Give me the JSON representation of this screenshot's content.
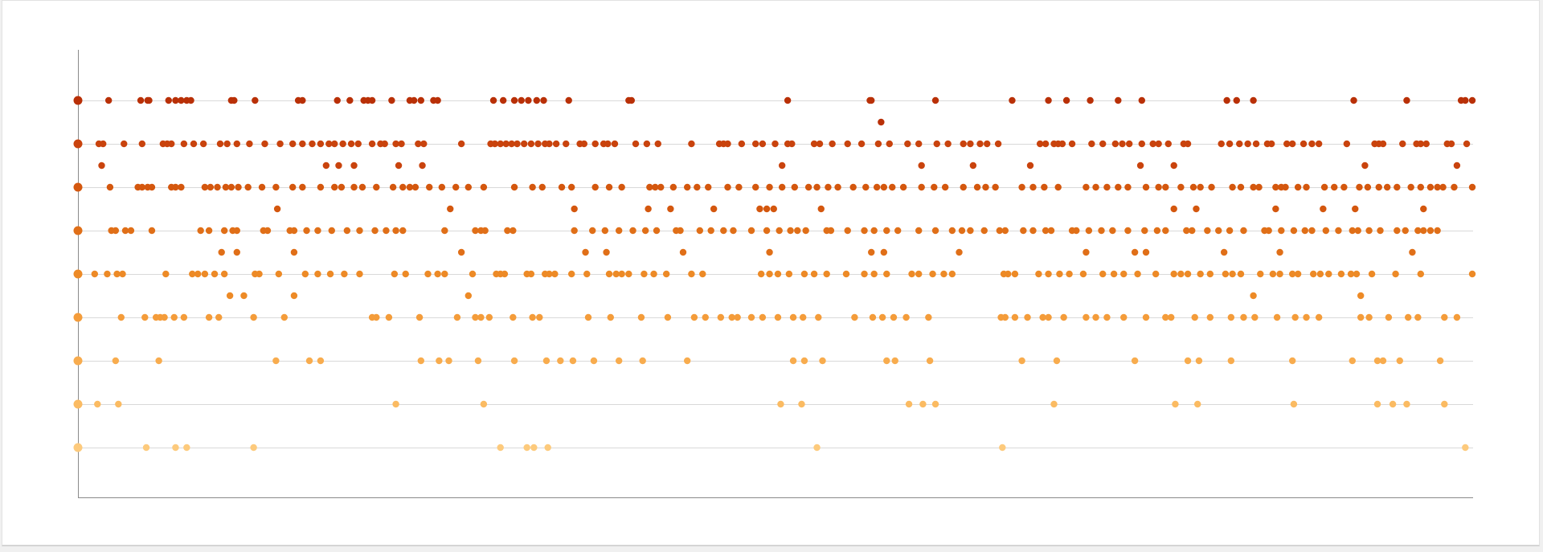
{
  "chart_data": {
    "type": "scatter",
    "title": "",
    "xlabel": "",
    "ylabel": "",
    "x_range": [
      0,
      100
    ],
    "grid": true,
    "legend": "none",
    "rows": [
      {
        "level": 1,
        "color": "#b93007",
        "x": [
          0,
          2.2,
          4.5,
          5.0,
          5.1,
          6.5,
          7.0,
          7.4,
          7.8,
          8.1,
          11.0,
          11.2,
          12.7,
          15.8,
          16.1,
          18.6,
          19.5,
          20.5,
          20.8,
          21.1,
          22.5,
          23.8,
          24.1,
          24.6,
          25.5,
          25.8,
          29.8,
          30.5,
          31.3,
          31.8,
          32.3,
          32.9,
          33.4,
          35.2,
          39.5,
          39.7,
          50.9,
          56.8,
          56.9,
          61.5,
          67.0,
          69.6,
          70.9,
          72.6,
          74.6,
          76.3,
          82.4,
          83.1,
          84.3,
          91.5,
          95.3,
          100,
          99.5,
          99.2
        ]
      },
      {
        "level": 2,
        "color": "#c9430d",
        "x": [
          0,
          1.5,
          1.8,
          3.3,
          4.6,
          6.1,
          6.4,
          6.7,
          7.6,
          8.3,
          9.0,
          10.2,
          10.7,
          11.4,
          12.3,
          13.4,
          14.5,
          15.4,
          16.1,
          16.8,
          17.4,
          18.0,
          18.4,
          19.0,
          19.6,
          20.1,
          21.1,
          21.7,
          22.0,
          22.8,
          23.2,
          24.4,
          24.8,
          27.5,
          29.6,
          29.9,
          30.3,
          30.7,
          31.1,
          31.5,
          32.0,
          32.5,
          33.0,
          33.5,
          33.8,
          34.3,
          35.0,
          36.0,
          36.3,
          37.1,
          37.7,
          38.0,
          38.5,
          40.0,
          40.8,
          41.6,
          44.0,
          46.0,
          46.3,
          46.6,
          47.6,
          48.6,
          49.1,
          50.0,
          50.9,
          51.2,
          52.8,
          53.2,
          54.1,
          55.2,
          56.2,
          57.4,
          58.2,
          59.5,
          60.3,
          61.6,
          62.4,
          63.5,
          64.0,
          64.7,
          65.2,
          66.0,
          69.0,
          69.4,
          70.0,
          70.3,
          70.6,
          71.3,
          72.7,
          73.5,
          74.4,
          74.9,
          75.4,
          76.3,
          77.1,
          77.5,
          78.2,
          79.3,
          79.6,
          82.0,
          82.6,
          83.3,
          83.9,
          84.5,
          85.3,
          85.6,
          86.7,
          87.1,
          87.9,
          88.5,
          89.0,
          91.0,
          93.0,
          93.3,
          93.6,
          95.0,
          96.0,
          96.3,
          96.7,
          98.2,
          98.5,
          99.6
        ]
      },
      {
        "level": 3,
        "color": "#d4570e",
        "x": [
          0,
          2.3,
          4.3,
          4.6,
          5.0,
          5.3,
          6.7,
          7.0,
          7.4,
          9.1,
          9.5,
          10.0,
          10.6,
          11.0,
          11.5,
          12.2,
          13.2,
          14.2,
          15.4,
          16.1,
          17.4,
          18.4,
          18.9,
          19.8,
          20.4,
          21.4,
          22.6,
          23.3,
          23.8,
          24.2,
          25.2,
          26.1,
          27.1,
          28.0,
          29.1,
          31.3,
          32.6,
          33.3,
          34.7,
          35.4,
          37.1,
          38.1,
          39.0,
          41.0,
          41.4,
          41.8,
          42.7,
          43.7,
          44.4,
          45.2,
          46.6,
          47.4,
          48.6,
          49.6,
          50.5,
          51.4,
          52.4,
          53.0,
          53.8,
          54.5,
          55.6,
          56.5,
          57.3,
          57.8,
          58.4,
          59.2,
          60.5,
          61.4,
          62.2,
          63.5,
          64.5,
          65.1,
          65.8,
          67.7,
          68.5,
          69.3,
          70.3,
          72.3,
          73.0,
          73.8,
          74.6,
          75.3,
          76.6,
          77.5,
          78.0,
          79.1,
          80.0,
          80.5,
          81.3,
          82.8,
          83.4,
          84.3,
          84.7,
          85.9,
          86.3,
          86.6,
          87.5,
          88.1,
          89.4,
          90.1,
          90.8,
          91.9,
          92.5,
          93.3,
          93.9,
          94.6,
          95.6,
          96.3,
          97.0,
          97.5,
          97.9,
          98.7,
          100
        ]
      },
      {
        "level": 4,
        "color": "#e06f18",
        "x": [
          0,
          2.4,
          2.7,
          3.4,
          3.8,
          5.3,
          8.8,
          9.4,
          10.5,
          11.1,
          11.4,
          13.3,
          13.6,
          15.2,
          15.5,
          16.4,
          17.2,
          18.2,
          19.3,
          20.2,
          21.3,
          22.1,
          22.8,
          23.3,
          26.3,
          28.5,
          28.9,
          29.2,
          30.8,
          31.2,
          35.6,
          36.9,
          37.8,
          38.8,
          39.8,
          40.7,
          41.5,
          42.9,
          43.2,
          44.6,
          45.4,
          46.3,
          47.0,
          48.3,
          49.4,
          50.3,
          51.1,
          51.6,
          52.2,
          53.7,
          54.0,
          55.2,
          56.4,
          57.1,
          58.0,
          58.8,
          60.3,
          61.5,
          62.7,
          63.4,
          64.0,
          65.0,
          66.1,
          66.5,
          67.8,
          68.5,
          69.4,
          69.8,
          71.3,
          71.6,
          72.5,
          73.4,
          74.2,
          75.3,
          76.5,
          77.4,
          78.0,
          79.5,
          79.9,
          81.0,
          81.8,
          82.6,
          83.6,
          85.1,
          85.4,
          86.3,
          87.2,
          88.0,
          88.5,
          89.5,
          90.4,
          91.4,
          91.8,
          92.6,
          93.4,
          94.6,
          95.2,
          96.1,
          96.5,
          97.0,
          97.5
        ]
      },
      {
        "level": 5,
        "color": "#ed8a26",
        "x": [
          0,
          1.2,
          2.1,
          2.8,
          3.2,
          6.3,
          8.2,
          8.6,
          9.1,
          9.8,
          10.5,
          12.7,
          13.0,
          14.4,
          16.3,
          17.2,
          18.1,
          19.1,
          20.2,
          22.7,
          23.5,
          25.1,
          25.8,
          26.3,
          28.3,
          30.0,
          30.3,
          30.6,
          32.2,
          32.5,
          33.5,
          33.8,
          34.2,
          35.4,
          36.5,
          38.1,
          38.6,
          39.0,
          39.5,
          40.6,
          41.3,
          42.2,
          44.0,
          44.8,
          49.0,
          49.6,
          50.2,
          51.0,
          52.1,
          52.8,
          53.7,
          55.1,
          56.4,
          57.1,
          58.0,
          59.8,
          60.3,
          61.3,
          62.1,
          62.7,
          66.4,
          66.7,
          67.2,
          68.9,
          69.6,
          70.4,
          71.1,
          72.1,
          73.5,
          74.3,
          75.0,
          76.0,
          77.3,
          78.6,
          79.1,
          79.6,
          80.5,
          81.2,
          82.3,
          82.8,
          83.4,
          84.8,
          85.7,
          86.2,
          87.1,
          87.5,
          88.6,
          89.1,
          89.7,
          90.6,
          91.3,
          91.7,
          92.8,
          94.5,
          96.3,
          100
        ]
      },
      {
        "level": 6,
        "color": "#f49c3a",
        "x": [
          0,
          3.1,
          4.8,
          5.6,
          5.9,
          6.2,
          6.9,
          7.6,
          9.4,
          10.1,
          12.6,
          14.8,
          21.1,
          21.4,
          22.3,
          24.5,
          27.2,
          28.5,
          28.9,
          29.5,
          31.2,
          32.6,
          33.1,
          36.6,
          38.2,
          40.4,
          42.3,
          44.2,
          45.0,
          46.1,
          46.9,
          47.3,
          48.3,
          49.1,
          50.2,
          51.3,
          52.0,
          53.1,
          55.7,
          57.0,
          57.7,
          58.5,
          59.4,
          61.0,
          66.2,
          66.5,
          67.2,
          68.1,
          69.2,
          69.6,
          70.7,
          72.3,
          73.0,
          73.8,
          75.0,
          76.6,
          78.0,
          78.4,
          80.1,
          81.2,
          82.7,
          83.6,
          84.4,
          86.0,
          87.3,
          88.1,
          89.0,
          92.0,
          92.6,
          94.0,
          95.4,
          96.1,
          98.0,
          98.9
        ]
      },
      {
        "level": 7,
        "color": "#f8ac4e",
        "x": [
          0,
          2.7,
          5.8,
          14.2,
          16.6,
          17.4,
          24.6,
          25.9,
          26.6,
          28.7,
          31.3,
          33.6,
          34.6,
          35.5,
          37.0,
          38.8,
          40.5,
          43.7,
          51.3,
          52.1,
          53.4,
          58.0,
          58.6,
          61.1,
          67.7,
          70.2,
          75.8,
          79.6,
          80.4,
          82.7,
          87.1,
          91.4,
          93.2,
          93.6,
          94.8,
          97.7
        ]
      },
      {
        "level": 8,
        "color": "#fbbb62",
        "x": [
          0,
          1.4,
          2.9,
          22.8,
          29.1,
          50.4,
          51.9,
          59.6,
          60.6,
          61.5,
          70.0,
          78.7,
          80.3,
          87.2,
          93.2,
          94.3,
          95.3,
          98.0
        ]
      },
      {
        "level": 9,
        "color": "#fdca7c",
        "x": [
          0,
          4.9,
          7.0,
          7.8,
          12.6,
          30.3,
          32.2,
          32.7,
          33.7,
          53.0,
          66.3,
          99.5
        ]
      }
    ],
    "outliers": [
      {
        "x": 57.6,
        "y": 1.5,
        "color": "#b93007"
      },
      {
        "x": 1.7,
        "y": 2.5,
        "color": "#c9430d"
      },
      {
        "x": 17.8,
        "y": 2.5,
        "color": "#c9430d"
      },
      {
        "x": 18.7,
        "y": 2.5,
        "color": "#c9430d"
      },
      {
        "x": 19.8,
        "y": 2.5,
        "color": "#c9430d"
      },
      {
        "x": 23.0,
        "y": 2.5,
        "color": "#c9430d"
      },
      {
        "x": 24.7,
        "y": 2.5,
        "color": "#c9430d"
      },
      {
        "x": 50.5,
        "y": 2.5,
        "color": "#c9430d"
      },
      {
        "x": 60.5,
        "y": 2.5,
        "color": "#c9430d"
      },
      {
        "x": 64.2,
        "y": 2.5,
        "color": "#c9430d"
      },
      {
        "x": 68.3,
        "y": 2.5,
        "color": "#c9430d"
      },
      {
        "x": 76.2,
        "y": 2.5,
        "color": "#c9430d"
      },
      {
        "x": 78.6,
        "y": 2.5,
        "color": "#c9430d"
      },
      {
        "x": 92.3,
        "y": 2.5,
        "color": "#c9430d"
      },
      {
        "x": 98.9,
        "y": 2.5,
        "color": "#c9430d"
      },
      {
        "x": 14.3,
        "y": 3.5,
        "color": "#d4570e"
      },
      {
        "x": 26.7,
        "y": 3.5,
        "color": "#d4570e"
      },
      {
        "x": 35.6,
        "y": 3.5,
        "color": "#d4570e"
      },
      {
        "x": 40.9,
        "y": 3.5,
        "color": "#d4570e"
      },
      {
        "x": 42.5,
        "y": 3.5,
        "color": "#d4570e"
      },
      {
        "x": 45.6,
        "y": 3.5,
        "color": "#d4570e"
      },
      {
        "x": 48.9,
        "y": 3.5,
        "color": "#d4570e"
      },
      {
        "x": 49.4,
        "y": 3.5,
        "color": "#d4570e"
      },
      {
        "x": 49.9,
        "y": 3.5,
        "color": "#d4570e"
      },
      {
        "x": 53.3,
        "y": 3.5,
        "color": "#d4570e"
      },
      {
        "x": 78.6,
        "y": 3.5,
        "color": "#d4570e"
      },
      {
        "x": 80.2,
        "y": 3.5,
        "color": "#d4570e"
      },
      {
        "x": 85.9,
        "y": 3.5,
        "color": "#d4570e"
      },
      {
        "x": 89.3,
        "y": 3.5,
        "color": "#d4570e"
      },
      {
        "x": 91.6,
        "y": 3.5,
        "color": "#d4570e"
      },
      {
        "x": 96.5,
        "y": 3.5,
        "color": "#d4570e"
      },
      {
        "x": 10.3,
        "y": 4.5,
        "color": "#e06f18"
      },
      {
        "x": 11.4,
        "y": 4.5,
        "color": "#e06f18"
      },
      {
        "x": 15.5,
        "y": 4.5,
        "color": "#e06f18"
      },
      {
        "x": 27.5,
        "y": 4.5,
        "color": "#e06f18"
      },
      {
        "x": 36.4,
        "y": 4.5,
        "color": "#e06f18"
      },
      {
        "x": 37.9,
        "y": 4.5,
        "color": "#e06f18"
      },
      {
        "x": 43.4,
        "y": 4.5,
        "color": "#e06f18"
      },
      {
        "x": 49.6,
        "y": 4.5,
        "color": "#e06f18"
      },
      {
        "x": 56.9,
        "y": 4.5,
        "color": "#e06f18"
      },
      {
        "x": 57.8,
        "y": 4.5,
        "color": "#e06f18"
      },
      {
        "x": 63.2,
        "y": 4.5,
        "color": "#e06f18"
      },
      {
        "x": 72.3,
        "y": 4.5,
        "color": "#e06f18"
      },
      {
        "x": 75.8,
        "y": 4.5,
        "color": "#e06f18"
      },
      {
        "x": 76.6,
        "y": 4.5,
        "color": "#e06f18"
      },
      {
        "x": 82.2,
        "y": 4.5,
        "color": "#e06f18"
      },
      {
        "x": 86.2,
        "y": 4.5,
        "color": "#e06f18"
      },
      {
        "x": 95.7,
        "y": 4.5,
        "color": "#e06f18"
      },
      {
        "x": 10.9,
        "y": 5.5,
        "color": "#ed8a26"
      },
      {
        "x": 11.9,
        "y": 5.5,
        "color": "#ed8a26"
      },
      {
        "x": 15.5,
        "y": 5.5,
        "color": "#ed8a26"
      },
      {
        "x": 28.0,
        "y": 5.5,
        "color": "#ed8a26"
      },
      {
        "x": 84.3,
        "y": 5.5,
        "color": "#ed8a26"
      },
      {
        "x": 92.0,
        "y": 5.5,
        "color": "#ed8a26"
      }
    ]
  }
}
